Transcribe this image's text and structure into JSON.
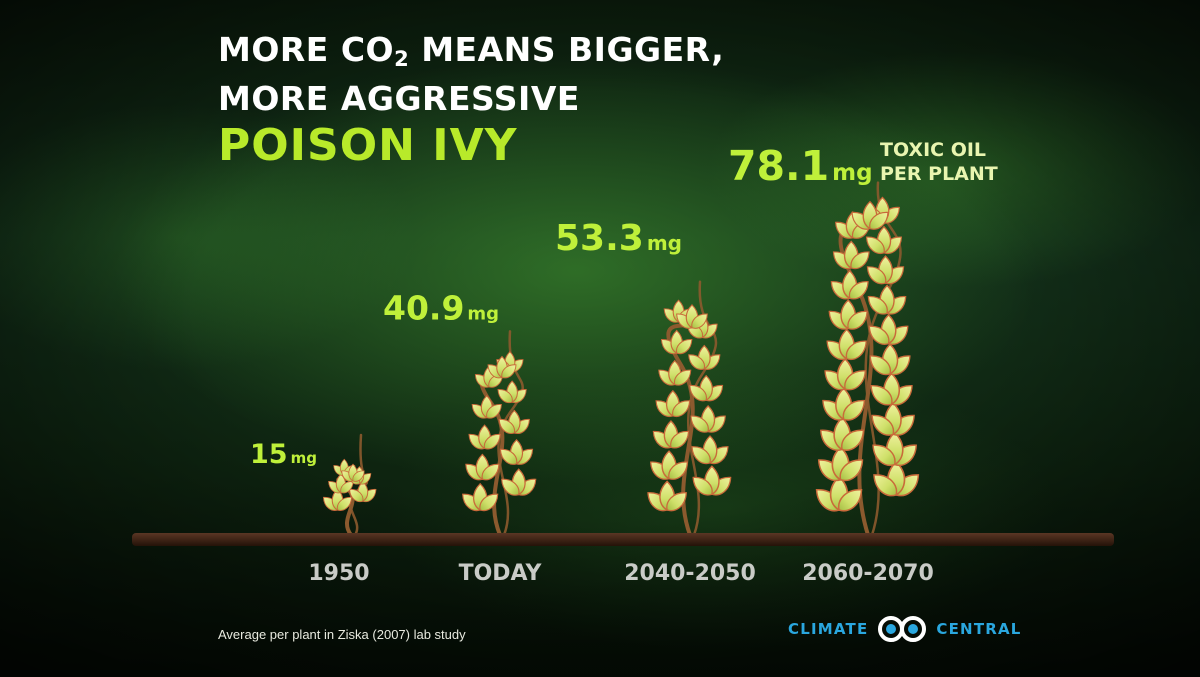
{
  "title": {
    "line1_a": "MORE CO",
    "line1_sub": "2",
    "line1_b": " MEANS BIGGER,",
    "line2": "MORE AGGRESSIVE",
    "line3": "POISON IVY"
  },
  "chart_data": {
    "type": "bar",
    "categories": [
      "1950",
      "TODAY",
      "2040-2050",
      "2060-2070"
    ],
    "values": [
      15,
      40.9,
      53.3,
      78.1
    ],
    "value_labels": [
      "15",
      "40.9",
      "53.3",
      "78.1"
    ],
    "unit": "mg",
    "annotation": [
      "TOXIC OIL",
      "PER PLANT"
    ],
    "xlabel": "",
    "ylabel": "",
    "ylim": [
      0,
      80
    ],
    "grid": false,
    "legend": "none"
  },
  "source": "Average per plant in Ziska (2007) lab study",
  "logo": {
    "left": "CLIMATE",
    "right": "CENTRAL"
  },
  "colors": {
    "accent": "#b8ea2a",
    "value_text": "#bff03a",
    "leaf": "#d9e57a",
    "leaf_edge": "#c96a3a",
    "stem": "#8c5a2e",
    "ground": "#3e2418",
    "year_text": "#c9cbc7",
    "logo": "#2aa7df"
  },
  "icons": {
    "logo_mark": "climate-central-infinity-icon"
  }
}
